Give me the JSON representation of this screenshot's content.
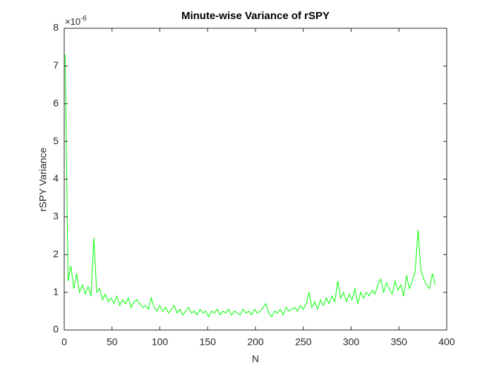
{
  "chart_data": {
    "type": "line",
    "title": "Minute-wise Variance of rSPY",
    "x_label": "N",
    "y_label": "rSPY Variance",
    "y_exponent": {
      "base": "×10",
      "power": "-6"
    },
    "xlim": [
      0,
      400
    ],
    "xticks": [
      0,
      50,
      100,
      150,
      200,
      250,
      300,
      350,
      400
    ],
    "ylim": [
      0,
      8
    ],
    "yticks": [
      0,
      1,
      2,
      3,
      4,
      5,
      6,
      7,
      8
    ],
    "grid": false,
    "box": true,
    "x": [
      1,
      4,
      7,
      10,
      13,
      16,
      19,
      22,
      25,
      28,
      31,
      34,
      37,
      40,
      43,
      46,
      49,
      52,
      55,
      58,
      61,
      64,
      67,
      70,
      73,
      76,
      79,
      82,
      85,
      88,
      91,
      94,
      97,
      100,
      103,
      106,
      109,
      112,
      115,
      118,
      121,
      124,
      127,
      130,
      133,
      136,
      139,
      142,
      145,
      148,
      151,
      154,
      157,
      160,
      163,
      166,
      169,
      172,
      175,
      178,
      181,
      184,
      187,
      190,
      193,
      196,
      199,
      202,
      205,
      208,
      211,
      214,
      217,
      220,
      223,
      226,
      229,
      232,
      235,
      238,
      241,
      244,
      247,
      250,
      253,
      256,
      259,
      262,
      265,
      268,
      271,
      274,
      277,
      280,
      283,
      286,
      289,
      292,
      295,
      298,
      301,
      304,
      307,
      310,
      313,
      316,
      319,
      322,
      325,
      328,
      331,
      334,
      337,
      340,
      343,
      346,
      349,
      352,
      355,
      358,
      361,
      364,
      367,
      370,
      373,
      376,
      379,
      382,
      385,
      388
    ],
    "series": [
      {
        "color": "#00ff00",
        "values": [
          7.3,
          1.3,
          1.7,
          1.1,
          1.5,
          1.0,
          1.2,
          0.95,
          1.15,
          0.9,
          2.45,
          1.0,
          1.1,
          0.8,
          0.95,
          0.75,
          0.85,
          0.7,
          0.9,
          0.65,
          0.8,
          0.7,
          0.85,
          0.6,
          0.75,
          0.8,
          0.7,
          0.6,
          0.65,
          0.55,
          0.85,
          0.6,
          0.5,
          0.65,
          0.5,
          0.6,
          0.45,
          0.55,
          0.65,
          0.45,
          0.55,
          0.4,
          0.5,
          0.6,
          0.45,
          0.5,
          0.4,
          0.55,
          0.45,
          0.5,
          0.35,
          0.5,
          0.45,
          0.55,
          0.4,
          0.5,
          0.45,
          0.55,
          0.4,
          0.5,
          0.45,
          0.4,
          0.55,
          0.45,
          0.5,
          0.4,
          0.55,
          0.45,
          0.5,
          0.6,
          0.7,
          0.45,
          0.35,
          0.5,
          0.45,
          0.55,
          0.4,
          0.6,
          0.5,
          0.55,
          0.6,
          0.5,
          0.65,
          0.55,
          0.7,
          1.0,
          0.6,
          0.75,
          0.55,
          0.8,
          0.65,
          0.85,
          0.7,
          0.9,
          0.75,
          1.3,
          0.85,
          1.0,
          0.75,
          0.95,
          0.8,
          1.1,
          0.7,
          1.0,
          0.85,
          1.0,
          0.9,
          1.05,
          0.95,
          1.2,
          1.35,
          1.0,
          1.25,
          1.1,
          0.95,
          1.3,
          1.05,
          1.2,
          0.9,
          1.45,
          1.1,
          1.3,
          1.55,
          2.65,
          1.6,
          1.35,
          1.2,
          1.1,
          1.5,
          1.2
        ]
      }
    ]
  }
}
